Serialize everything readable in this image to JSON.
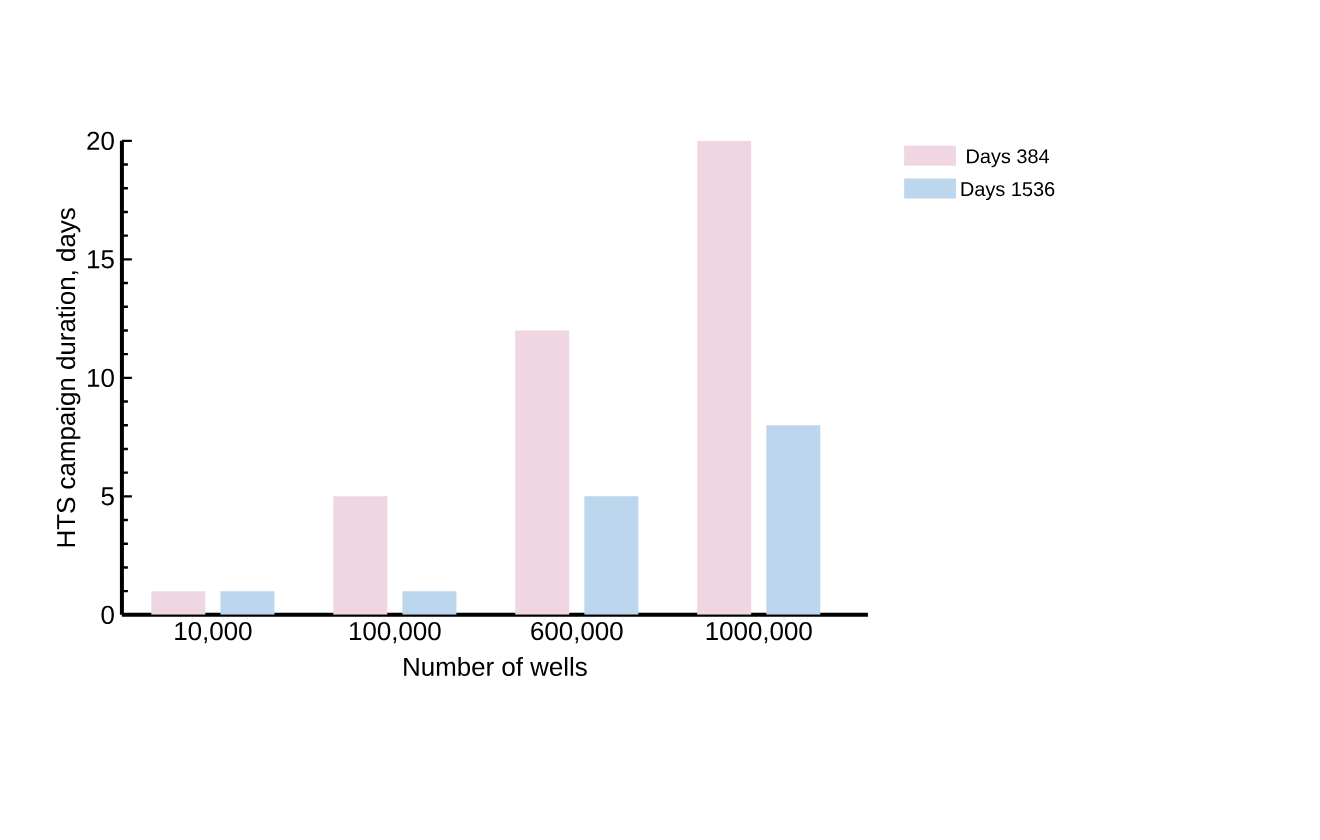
{
  "chart_data": {
    "type": "bar",
    "xlabel": "Number of wells",
    "ylabel": "HTS campaign duration, days",
    "categories": [
      "10,000",
      "100,000",
      "600,000",
      "1000,000"
    ],
    "series": [
      {
        "name": "Days 384",
        "color": "#f0d6e3",
        "values": [
          1,
          5,
          12,
          20
        ]
      },
      {
        "name": "Days 1536",
        "color": "#bcd6ee",
        "values": [
          1,
          1,
          5,
          8
        ]
      }
    ],
    "ylim": [
      0,
      20
    ],
    "yticks": [
      0,
      5,
      10,
      15,
      20
    ],
    "legend": "top right"
  }
}
